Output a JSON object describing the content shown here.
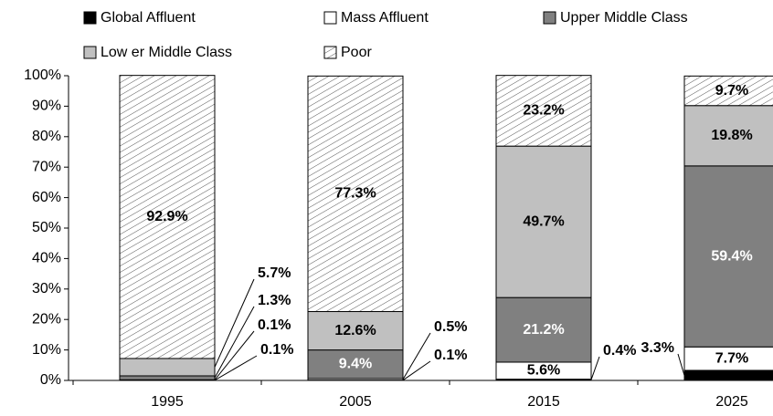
{
  "chart_data": {
    "type": "stacked_bar",
    "categories": [
      "1995",
      "2005",
      "2015",
      "2025"
    ],
    "series": [
      {
        "name": "Global Affluent",
        "color": "#000000",
        "values": [
          0.1,
          0.1,
          0.4,
          3.3
        ],
        "value_labels": [
          "0.1%",
          "0.1%",
          "0.4%",
          "3.3%"
        ]
      },
      {
        "name": "Mass Affluent",
        "color": "#ffffff",
        "values": [
          0.1,
          0.5,
          5.6,
          7.7
        ],
        "value_labels": [
          "0.1%",
          "0.5%",
          "5.6%",
          "7.7%"
        ]
      },
      {
        "name": "Upper Middle Class",
        "color": "#808080",
        "values": [
          1.3,
          9.4,
          21.2,
          59.4
        ],
        "value_labels": [
          "1.3%",
          "9.4%",
          "21.2%",
          "59.4%"
        ]
      },
      {
        "name": "Low er Middle Class",
        "color": "#c0c0c0",
        "values": [
          5.7,
          12.6,
          49.7,
          19.8
        ],
        "value_labels": [
          "5.7%",
          "12.6%",
          "49.7%",
          "19.8%"
        ]
      },
      {
        "name": "Poor",
        "color": "#ffffff",
        "fill_pattern": "diagonal",
        "values": [
          92.9,
          77.3,
          23.2,
          9.7
        ],
        "value_labels": [
          "92.9%",
          "77.3%",
          "23.2%",
          "9.7%"
        ]
      }
    ],
    "ylim": [
      0,
      100
    ],
    "yticks": [
      {
        "value": 0,
        "label": "0%"
      },
      {
        "value": 10,
        "label": "10%"
      },
      {
        "value": 20,
        "label": "20%"
      },
      {
        "value": 30,
        "label": "30%"
      },
      {
        "value": 40,
        "label": "40%"
      },
      {
        "value": 50,
        "label": "50%"
      },
      {
        "value": 60,
        "label": "60%"
      },
      {
        "value": 70,
        "label": "70%"
      },
      {
        "value": 80,
        "label": "80%"
      },
      {
        "value": 90,
        "label": "90%"
      },
      {
        "value": 100,
        "label": "100%"
      }
    ],
    "grid": false
  }
}
